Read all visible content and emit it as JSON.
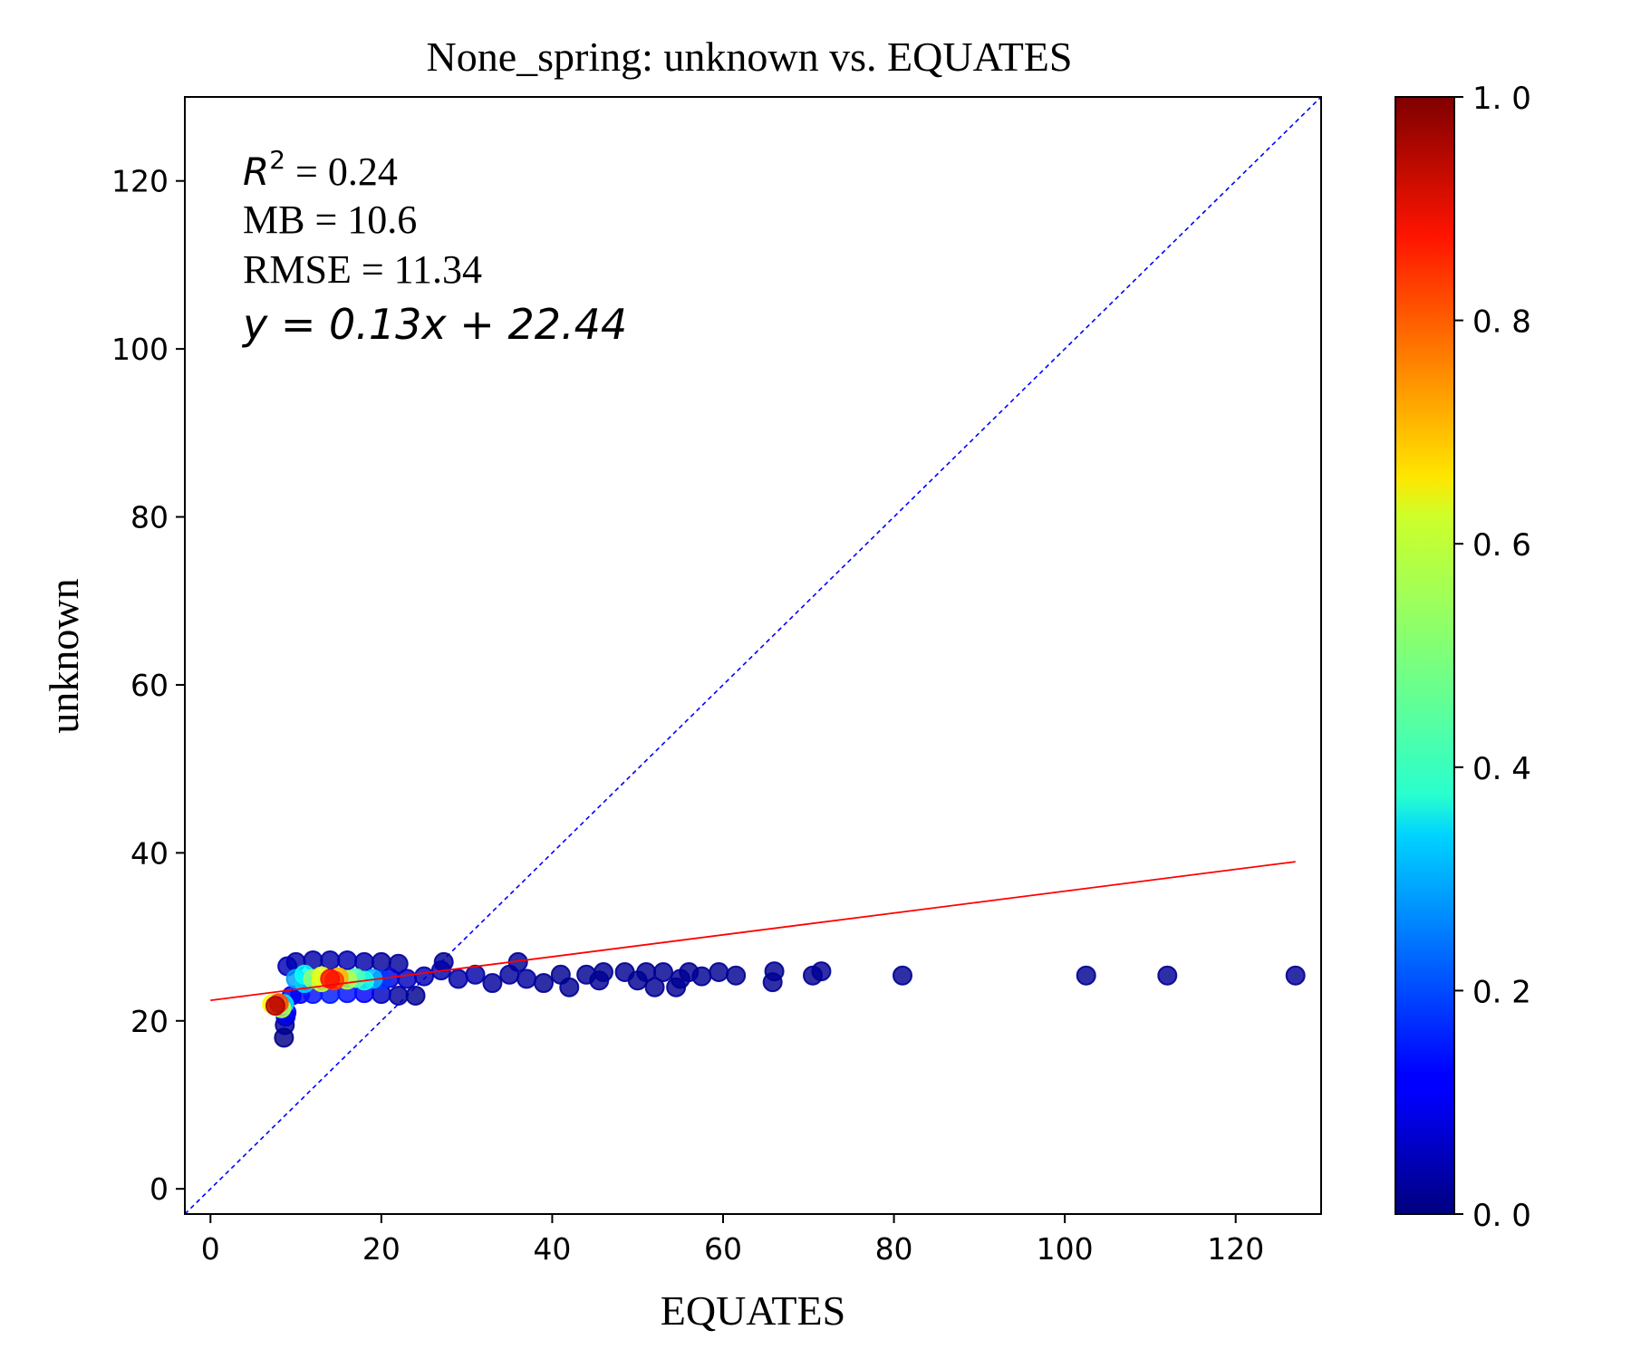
{
  "chart_data": {
    "type": "scatter",
    "title": "None_spring: unknown vs. EQUATES",
    "xlabel": "EQUATES",
    "ylabel": "unknown",
    "xlim": [
      -3,
      130
    ],
    "ylim": [
      -3,
      130
    ],
    "x_ticks": [
      0,
      20,
      40,
      60,
      80,
      100,
      120
    ],
    "y_ticks": [
      0,
      20,
      40,
      60,
      80,
      100,
      120
    ],
    "x_tick_labels": [
      "0",
      "20",
      "40",
      "60",
      "80",
      "100",
      "120"
    ],
    "y_tick_labels": [
      "0",
      "20",
      "40",
      "60",
      "80",
      "100",
      "120"
    ],
    "grid": false,
    "stats": {
      "r2_label": "R",
      "r2_sup": "2",
      "r2_value": " = 0.24",
      "mb": "MB = 10.6",
      "rmse": "RMSE = 11.34",
      "equation": "y = 0.13x + 22.44"
    },
    "fit_line": {
      "slope": 0.13,
      "intercept": 22.44,
      "x_range": [
        0,
        127
      ],
      "color": "#ff0000"
    },
    "one_to_one_line": {
      "color": "#0000ff",
      "style": "dashed"
    },
    "colorbar": {
      "cmap": "jet",
      "range": [
        0.0,
        1.0
      ],
      "ticks": [
        0.0,
        0.2,
        0.4,
        0.6,
        0.8,
        1.0
      ],
      "tick_labels": [
        "0. 0",
        "0. 2",
        "0. 4",
        "0. 6",
        "0. 8",
        "1. 0"
      ]
    },
    "points": [
      {
        "x": 7.2,
        "y": 22.0,
        "d": 0.62
      },
      {
        "x": 7.6,
        "y": 21.8,
        "d": 0.95
      },
      {
        "x": 8.0,
        "y": 22.1,
        "d": 0.8
      },
      {
        "x": 8.3,
        "y": 21.5,
        "d": 0.55
      },
      {
        "x": 8.6,
        "y": 22.0,
        "d": 0.35
      },
      {
        "x": 8.8,
        "y": 20.5,
        "d": 0.08
      },
      {
        "x": 8.7,
        "y": 19.5,
        "d": 0.02
      },
      {
        "x": 8.6,
        "y": 18.0,
        "d": 0.01
      },
      {
        "x": 8.9,
        "y": 21.0,
        "d": 0.12
      },
      {
        "x": 9.0,
        "y": 26.5,
        "d": 0.05
      },
      {
        "x": 10.0,
        "y": 27.0,
        "d": 0.04
      },
      {
        "x": 12.0,
        "y": 27.2,
        "d": 0.04
      },
      {
        "x": 14.0,
        "y": 27.2,
        "d": 0.04
      },
      {
        "x": 16.0,
        "y": 27.2,
        "d": 0.05
      },
      {
        "x": 18.0,
        "y": 27.0,
        "d": 0.04
      },
      {
        "x": 20.0,
        "y": 27.0,
        "d": 0.03
      },
      {
        "x": 22.0,
        "y": 26.8,
        "d": 0.03
      },
      {
        "x": 9.5,
        "y": 23.0,
        "d": 0.1
      },
      {
        "x": 10.5,
        "y": 23.2,
        "d": 0.12
      },
      {
        "x": 12.0,
        "y": 23.2,
        "d": 0.14
      },
      {
        "x": 14.0,
        "y": 23.2,
        "d": 0.15
      },
      {
        "x": 16.0,
        "y": 23.3,
        "d": 0.14
      },
      {
        "x": 18.0,
        "y": 23.3,
        "d": 0.12
      },
      {
        "x": 20.0,
        "y": 23.2,
        "d": 0.06
      },
      {
        "x": 22.0,
        "y": 23.0,
        "d": 0.03
      },
      {
        "x": 24.0,
        "y": 23.0,
        "d": 0.02
      },
      {
        "x": 10.0,
        "y": 25.0,
        "d": 0.28
      },
      {
        "x": 11.0,
        "y": 25.5,
        "d": 0.38
      },
      {
        "x": 11.0,
        "y": 24.5,
        "d": 0.33
      },
      {
        "x": 12.0,
        "y": 25.0,
        "d": 0.52
      },
      {
        "x": 13.0,
        "y": 25.3,
        "d": 0.6
      },
      {
        "x": 13.0,
        "y": 24.6,
        "d": 0.58
      },
      {
        "x": 14.0,
        "y": 25.0,
        "d": 0.86
      },
      {
        "x": 14.5,
        "y": 24.8,
        "d": 0.82
      },
      {
        "x": 15.0,
        "y": 25.2,
        "d": 0.7
      },
      {
        "x": 16.0,
        "y": 24.9,
        "d": 0.55
      },
      {
        "x": 17.0,
        "y": 25.1,
        "d": 0.45
      },
      {
        "x": 18.0,
        "y": 24.8,
        "d": 0.4
      },
      {
        "x": 19.0,
        "y": 25.0,
        "d": 0.3
      },
      {
        "x": 20.0,
        "y": 24.9,
        "d": 0.18
      },
      {
        "x": 21.0,
        "y": 25.1,
        "d": 0.09
      },
      {
        "x": 23.0,
        "y": 25.0,
        "d": 0.06
      },
      {
        "x": 25.0,
        "y": 25.3,
        "d": 0.05
      },
      {
        "x": 27.0,
        "y": 26.0,
        "d": 0.04
      },
      {
        "x": 27.3,
        "y": 27.0,
        "d": 0.02
      },
      {
        "x": 29.0,
        "y": 25.0,
        "d": 0.04
      },
      {
        "x": 31.0,
        "y": 25.5,
        "d": 0.04
      },
      {
        "x": 33.0,
        "y": 24.5,
        "d": 0.03
      },
      {
        "x": 35.0,
        "y": 25.5,
        "d": 0.03
      },
      {
        "x": 36.0,
        "y": 27.0,
        "d": 0.02
      },
      {
        "x": 37.0,
        "y": 25.0,
        "d": 0.03
      },
      {
        "x": 39.0,
        "y": 24.5,
        "d": 0.02
      },
      {
        "x": 41.0,
        "y": 25.5,
        "d": 0.02
      },
      {
        "x": 42.0,
        "y": 24.0,
        "d": 0.02
      },
      {
        "x": 44.0,
        "y": 25.5,
        "d": 0.02
      },
      {
        "x": 45.5,
        "y": 24.8,
        "d": 0.02
      },
      {
        "x": 46.0,
        "y": 25.8,
        "d": 0.02
      },
      {
        "x": 48.5,
        "y": 25.8,
        "d": 0.02
      },
      {
        "x": 50.0,
        "y": 24.8,
        "d": 0.02
      },
      {
        "x": 51.0,
        "y": 25.8,
        "d": 0.02
      },
      {
        "x": 52.0,
        "y": 24.0,
        "d": 0.02
      },
      {
        "x": 53.0,
        "y": 25.8,
        "d": 0.02
      },
      {
        "x": 54.5,
        "y": 24.0,
        "d": 0.02
      },
      {
        "x": 55.0,
        "y": 25.0,
        "d": 0.02
      },
      {
        "x": 56.0,
        "y": 25.8,
        "d": 0.02
      },
      {
        "x": 57.5,
        "y": 25.3,
        "d": 0.02
      },
      {
        "x": 59.5,
        "y": 25.8,
        "d": 0.02
      },
      {
        "x": 61.5,
        "y": 25.4,
        "d": 0.02
      },
      {
        "x": 65.8,
        "y": 24.6,
        "d": 0.02
      },
      {
        "x": 66.0,
        "y": 25.9,
        "d": 0.02
      },
      {
        "x": 70.5,
        "y": 25.4,
        "d": 0.02
      },
      {
        "x": 71.5,
        "y": 25.9,
        "d": 0.02
      },
      {
        "x": 81.0,
        "y": 25.4,
        "d": 0.02
      },
      {
        "x": 102.5,
        "y": 25.4,
        "d": 0.02
      },
      {
        "x": 112.0,
        "y": 25.4,
        "d": 0.02
      },
      {
        "x": 127.0,
        "y": 25.4,
        "d": 0.02
      }
    ]
  }
}
